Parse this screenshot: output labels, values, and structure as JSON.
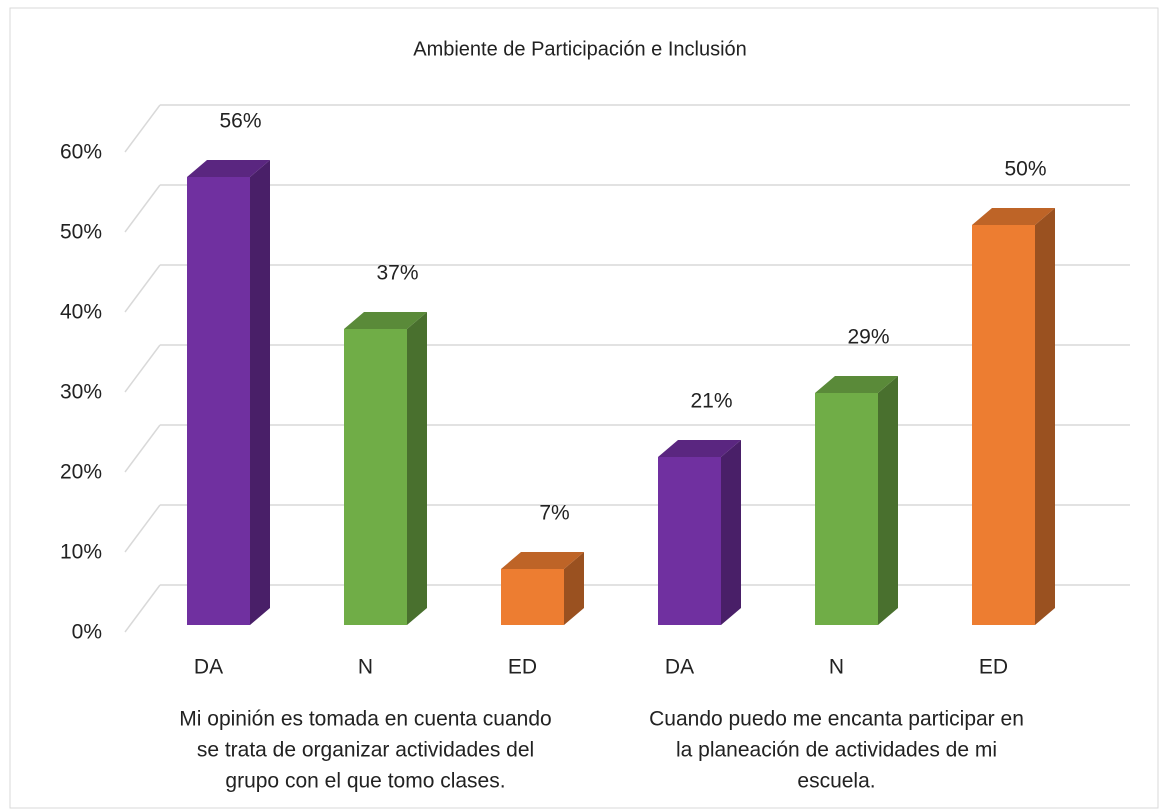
{
  "chart_data": {
    "type": "bar3d",
    "title": "Ambiente de Participación e Inclusión",
    "categories": [
      "DA",
      "N",
      "ED",
      "DA",
      "N",
      "ED"
    ],
    "values": [
      56,
      37,
      7,
      21,
      29,
      50
    ],
    "value_labels": [
      "56%",
      "37%",
      "7%",
      "21%",
      "29%",
      "50%"
    ],
    "colors": [
      "#7030a0",
      "#70ad47",
      "#ed7d31",
      "#7030a0",
      "#70ad47",
      "#ed7d31"
    ],
    "group_labels": [
      [
        "Mi opinión es tomada en cuenta cuando",
        "se trata de organizar actividades del",
        "grupo con el que tomo clases."
      ],
      [
        "Cuando puedo me encanta participar en",
        "la planeación de actividades de mi",
        "escuela."
      ]
    ],
    "ylim": [
      0,
      60
    ],
    "yticks": [
      {
        "value": 0,
        "label": "0%"
      },
      {
        "value": 10,
        "label": "10%"
      },
      {
        "value": 20,
        "label": "20%"
      },
      {
        "value": 30,
        "label": "30%"
      },
      {
        "value": 40,
        "label": "40%"
      },
      {
        "value": 50,
        "label": "50%"
      },
      {
        "value": 60,
        "label": "60%"
      }
    ],
    "grid": true
  }
}
